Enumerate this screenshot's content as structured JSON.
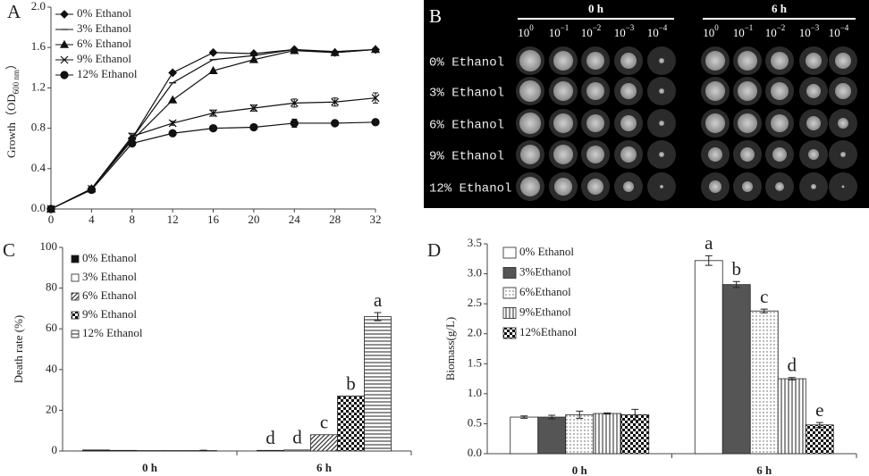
{
  "chart_data": [
    {
      "type": "line",
      "panel_label": "A",
      "y_label": {
        "text": "Growth（OD",
        "sub": "600 nm",
        "close": "）"
      },
      "x": [
        0,
        4,
        8,
        12,
        16,
        20,
        24,
        28,
        32
      ],
      "xlim": [
        0,
        32
      ],
      "xticks": [
        0,
        4,
        8,
        12,
        16,
        20,
        24,
        28,
        32
      ],
      "ylim": [
        0,
        2.0
      ],
      "yticks": [
        {
          "value": 0,
          "label": "0.0"
        },
        0.4,
        0.8,
        1.2,
        1.6,
        {
          "value": 2,
          "label": "2.0"
        }
      ],
      "series": [
        {
          "name": "0% Ethanol",
          "color": "#111",
          "marker": "diamond",
          "values": [
            0,
            0.2,
            0.7,
            1.35,
            1.55,
            1.54,
            1.58,
            1.55,
            1.58
          ]
        },
        {
          "name": "3% Ethanol",
          "color": "#111",
          "marker": "dash",
          "values": [
            0,
            0.2,
            0.7,
            1.25,
            1.48,
            1.52,
            1.58,
            1.56,
            1.58
          ]
        },
        {
          "name": "6% Ethanol",
          "color": "#111",
          "marker": "triangle",
          "values": [
            0,
            0.2,
            0.68,
            1.08,
            1.37,
            1.48,
            1.57,
            1.55,
            1.58
          ]
        },
        {
          "name": "9%  Ethanol",
          "color": "#111",
          "marker": "x",
          "values": [
            0,
            0.2,
            0.72,
            0.85,
            0.95,
            1.0,
            1.05,
            1.06,
            1.1
          ],
          "errors": [
            0,
            0.01,
            0.03,
            0.02,
            0.03,
            0.03,
            0.04,
            0.04,
            0.05
          ]
        },
        {
          "name": "12% Ethanol",
          "color": "#111",
          "marker": "circle",
          "values": [
            0,
            0.19,
            0.65,
            0.75,
            0.8,
            0.81,
            0.85,
            0.85,
            0.86
          ],
          "errors": [
            0,
            0.01,
            0.02,
            0.02,
            0.02,
            0.02,
            0.04,
            0.02,
            0.02
          ]
        }
      ]
    },
    {
      "type": "bar",
      "panel_label": "C",
      "y_label": "Death rate (%)",
      "categories": [
        "0 h",
        "6 h"
      ],
      "ylim": [
        0,
        100
      ],
      "yticks": [
        0,
        20,
        40,
        60,
        80,
        100
      ],
      "series": [
        {
          "name": "0% Ethanol",
          "pattern": "black",
          "values": [
            0.5,
            0.3
          ],
          "annotations": [
            null,
            "d"
          ]
        },
        {
          "name": "3% Ethanol",
          "pattern": "white",
          "values": [
            0.3,
            0.5
          ],
          "annotations": [
            null,
            "d"
          ]
        },
        {
          "name": "6% Ethanol",
          "pattern": "diagonal",
          "values": [
            0.2,
            8
          ],
          "annotations": [
            null,
            "c"
          ]
        },
        {
          "name": "9% Ethanol",
          "pattern": "checker",
          "values": [
            0.2,
            27
          ],
          "annotations": [
            null,
            "b"
          ]
        },
        {
          "name": "12% Ethanol",
          "pattern": "horizontal",
          "values": [
            0.2,
            66
          ],
          "errors": [
            0.2,
            2
          ],
          "annotations": [
            null,
            "a"
          ]
        }
      ]
    },
    {
      "type": "bar",
      "panel_label": "D",
      "y_label": "Biomass(g/L)",
      "categories": [
        "0 h",
        "6 h"
      ],
      "ylim": [
        0,
        3.5
      ],
      "yticks": [
        {
          "value": 0,
          "label": "0.0"
        },
        0.5,
        {
          "value": 1,
          "label": "1.0"
        },
        1.5,
        {
          "value": 2,
          "label": "2.0"
        },
        2.5,
        {
          "value": 3,
          "label": "3.0"
        },
        3.5
      ],
      "series": [
        {
          "name": "0% Ethanol",
          "pattern": "white",
          "values": [
            0.61,
            3.22
          ],
          "errors": [
            0.02,
            0.08
          ],
          "annotations": [
            null,
            "a"
          ]
        },
        {
          "name": "3%Ethanol",
          "pattern": "darkgray",
          "values": [
            0.61,
            2.82
          ],
          "errors": [
            0.03,
            0.05
          ],
          "annotations": [
            null,
            "b"
          ]
        },
        {
          "name": "6%Ethanol",
          "pattern": "dots",
          "values": [
            0.65,
            2.38
          ],
          "errors": [
            0.06,
            0.03
          ],
          "annotations": [
            null,
            "c"
          ]
        },
        {
          "name": "9%Ethanol",
          "pattern": "vertical",
          "values": [
            0.67,
            1.25
          ],
          "errors": [
            0.01,
            0.02
          ],
          "annotations": [
            null,
            "d"
          ]
        },
        {
          "name": "12%Ethanol",
          "pattern": "checker",
          "values": [
            0.65,
            0.48
          ],
          "errors": [
            0.09,
            0.04
          ],
          "annotations": [
            null,
            "e"
          ]
        }
      ]
    }
  ],
  "panel_b": {
    "label": "B",
    "groups": [
      "0 h",
      "6 h"
    ],
    "dilutions": [
      {
        "base": "10",
        "exponent": "0"
      },
      {
        "base": "10",
        "exponent": "−1"
      },
      {
        "base": "10",
        "exponent": "−2"
      },
      {
        "base": "10",
        "exponent": "−3"
      },
      {
        "base": "10",
        "exponent": "−4"
      }
    ],
    "rows": [
      "0% Ethanol",
      "3% Ethanol",
      "6% Ethanol",
      "9% Ethanol",
      "12% Ethanol"
    ]
  }
}
